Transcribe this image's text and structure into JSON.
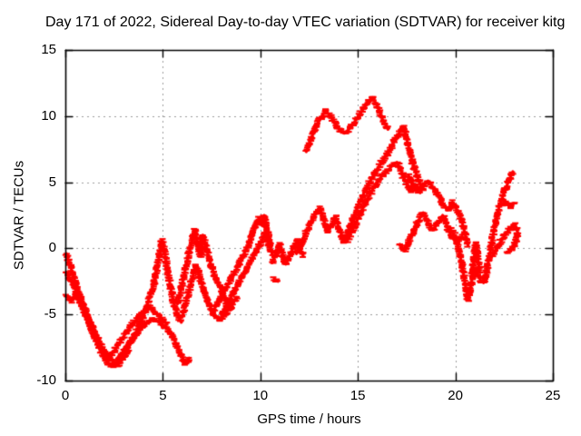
{
  "figure": {
    "title": "Day 171 of 2022, Sidereal Day-to-day VTEC variation (SDTVAR) for receiver kitg"
  },
  "chart_data": {
    "type": "scatter",
    "title": "Day 171 of 2022, Sidereal Day-to-day VTEC variation (SDTVAR) for receiver kitg",
    "xlabel": "GPS time / hours",
    "ylabel": "SDTVAR / TECUs",
    "xlim": [
      0,
      25
    ],
    "ylim": [
      -10,
      15
    ],
    "xticks": [
      0,
      5,
      10,
      15,
      20,
      25
    ],
    "yticks": [
      -10,
      -5,
      0,
      5,
      10,
      15
    ],
    "grid": true,
    "grid_style": "dotted-gray",
    "marker": "horizontal-dash",
    "color": "#ff0000",
    "axis_color": "#000000",
    "series": [
      {
        "name": "trace-01",
        "spread": 2.0,
        "points": [
          [
            0.05,
            -0.4
          ],
          [
            0.25,
            -1.3
          ],
          [
            0.5,
            -2.5
          ],
          [
            0.8,
            -3.8
          ],
          [
            1.1,
            -5.1
          ],
          [
            1.4,
            -6.3
          ],
          [
            1.7,
            -7.4
          ],
          [
            2.0,
            -8.3
          ],
          [
            2.25,
            -8.8
          ],
          [
            2.5,
            -8.9
          ],
          [
            2.75,
            -8.4
          ],
          [
            3.0,
            -7.8
          ],
          [
            3.3,
            -7.1
          ],
          [
            3.6,
            -6.5
          ],
          [
            3.9,
            -6.0
          ],
          [
            4.2,
            -5.6
          ],
          [
            4.5,
            -5.3
          ],
          [
            4.8,
            -5.6
          ],
          [
            5.1,
            -5.9
          ],
          [
            5.4,
            -6.3
          ],
          [
            5.7,
            -7.3
          ],
          [
            5.95,
            -8.1
          ],
          [
            6.15,
            -8.7
          ],
          [
            6.35,
            -8.3
          ]
        ]
      },
      {
        "name": "trace-02",
        "spread": 2.0,
        "points": [
          [
            0.05,
            -1.8
          ],
          [
            0.3,
            -2.5
          ],
          [
            0.6,
            -3.3
          ],
          [
            0.9,
            -4.3
          ],
          [
            1.2,
            -5.4
          ],
          [
            1.5,
            -6.4
          ],
          [
            1.8,
            -7.3
          ],
          [
            2.1,
            -8.0
          ],
          [
            2.4,
            -8.5
          ],
          [
            2.7,
            -8.8
          ],
          [
            3.0,
            -8.3
          ],
          [
            3.25,
            -7.7
          ]
        ]
      },
      {
        "name": "trace-03",
        "spread": 2.0,
        "points": [
          [
            0.05,
            -3.6
          ],
          [
            0.3,
            -4.0
          ],
          [
            0.55,
            -3.4
          ],
          [
            0.8,
            -4.1
          ],
          [
            1.05,
            -5.0
          ],
          [
            1.3,
            -5.9
          ],
          [
            1.6,
            -6.9
          ],
          [
            1.9,
            -7.7
          ],
          [
            2.2,
            -8.2
          ],
          [
            2.5,
            -7.8
          ],
          [
            2.8,
            -7.1
          ],
          [
            3.1,
            -6.4
          ],
          [
            3.4,
            -5.8
          ],
          [
            3.7,
            -5.3
          ],
          [
            4.0,
            -4.8
          ],
          [
            4.3,
            -4.4
          ],
          [
            4.6,
            -4.8
          ],
          [
            4.9,
            -5.3
          ],
          [
            5.2,
            -5.7
          ]
        ]
      },
      {
        "name": "trace-04",
        "points": [
          [
            2.7,
            -8.5
          ],
          [
            3.0,
            -7.9
          ],
          [
            3.3,
            -7.2
          ],
          [
            3.6,
            -6.4
          ],
          [
            3.9,
            -5.5
          ],
          [
            4.15,
            -4.5
          ],
          [
            4.35,
            -3.5
          ],
          [
            4.55,
            -2.6
          ],
          [
            4.7,
            -1.5
          ],
          [
            4.85,
            -0.3
          ],
          [
            4.95,
            0.6
          ],
          [
            5.1,
            -0.4
          ],
          [
            5.25,
            -1.7
          ],
          [
            5.4,
            -3.0
          ],
          [
            5.55,
            -4.1
          ],
          [
            5.75,
            -5.0
          ],
          [
            5.95,
            -5.6
          ]
        ]
      },
      {
        "name": "trace-05",
        "points": [
          [
            5.75,
            -4.2
          ],
          [
            5.95,
            -3.0
          ],
          [
            6.15,
            -1.6
          ],
          [
            6.35,
            -0.3
          ],
          [
            6.55,
            0.9
          ],
          [
            6.65,
            1.4
          ],
          [
            6.8,
            0.2
          ],
          [
            6.95,
            -0.6
          ],
          [
            7.05,
            1.0
          ],
          [
            7.2,
            0.2
          ],
          [
            7.35,
            -0.7
          ],
          [
            7.55,
            -1.6
          ],
          [
            7.75,
            -2.4
          ],
          [
            8.0,
            -3.2
          ],
          [
            8.25,
            -3.9
          ],
          [
            8.55,
            -4.5
          ]
        ]
      },
      {
        "name": "trace-06",
        "points": [
          [
            6.0,
            -5.2
          ],
          [
            6.2,
            -4.0
          ],
          [
            6.45,
            -2.6
          ],
          [
            6.7,
            -1.3
          ],
          [
            6.9,
            -2.2
          ],
          [
            7.1,
            -3.2
          ],
          [
            7.35,
            -4.2
          ],
          [
            7.6,
            -4.9
          ],
          [
            7.9,
            -5.4
          ],
          [
            8.2,
            -5.0
          ],
          [
            8.5,
            -4.3
          ],
          [
            8.8,
            -3.7
          ]
        ]
      },
      {
        "name": "trace-07",
        "points": [
          [
            7.6,
            -4.7
          ],
          [
            7.9,
            -3.9
          ],
          [
            8.2,
            -3.1
          ],
          [
            8.5,
            -2.3
          ],
          [
            8.8,
            -1.5
          ],
          [
            9.1,
            -0.6
          ],
          [
            9.4,
            0.3
          ],
          [
            9.6,
            1.1
          ],
          [
            9.8,
            2.0
          ],
          [
            9.95,
            2.3
          ],
          [
            10.1,
            1.7
          ],
          [
            10.2,
            2.5
          ],
          [
            10.35,
            1.4
          ],
          [
            10.5,
            0.4
          ]
        ]
      },
      {
        "name": "trace-08",
        "points": [
          [
            8.0,
            -5.0
          ],
          [
            8.3,
            -4.2
          ],
          [
            8.6,
            -3.4
          ],
          [
            8.9,
            -2.6
          ],
          [
            9.2,
            -1.8
          ],
          [
            9.5,
            -1.0
          ],
          [
            9.8,
            -0.2
          ],
          [
            10.05,
            0.5
          ],
          [
            10.25,
            1.1
          ],
          [
            10.45,
            0.3
          ],
          [
            10.6,
            -0.4
          ]
        ]
      },
      {
        "name": "trace-09",
        "points": [
          [
            10.6,
            -1.1
          ],
          [
            10.8,
            -0.4
          ],
          [
            11.0,
            0.3
          ],
          [
            11.15,
            -0.5
          ],
          [
            11.3,
            -1.2
          ],
          [
            11.5,
            -0.6
          ],
          [
            11.7,
            0.1
          ],
          [
            11.9,
            0.6
          ],
          [
            12.05,
            0.0
          ],
          [
            12.2,
            -0.6
          ]
        ]
      },
      {
        "name": "trace-10",
        "points": [
          [
            10.7,
            -2.3
          ],
          [
            10.9,
            -2.5
          ]
        ]
      },
      {
        "name": "trace-11",
        "points": [
          [
            11.85,
            -0.4
          ],
          [
            12.1,
            0.4
          ],
          [
            12.35,
            1.2
          ],
          [
            12.6,
            2.0
          ],
          [
            12.85,
            2.7
          ],
          [
            13.05,
            3.1
          ],
          [
            13.25,
            2.1
          ],
          [
            13.45,
            1.3
          ],
          [
            13.65,
            1.8
          ],
          [
            13.85,
            2.4
          ],
          [
            14.05,
            1.4
          ],
          [
            14.25,
            0.8
          ],
          [
            14.45,
            0.5
          ]
        ]
      },
      {
        "name": "trace-12",
        "spread": 2.0,
        "points": [
          [
            12.35,
            7.3
          ],
          [
            12.6,
            8.3
          ],
          [
            12.85,
            9.2
          ],
          [
            13.1,
            9.9
          ],
          [
            13.35,
            10.4
          ],
          [
            13.6,
            10.0
          ],
          [
            13.85,
            9.4
          ],
          [
            14.1,
            8.9
          ],
          [
            14.3,
            8.7
          ],
          [
            14.55,
            9.0
          ],
          [
            14.8,
            9.5
          ],
          [
            15.05,
            10.0
          ],
          [
            15.3,
            10.6
          ],
          [
            15.55,
            11.1
          ],
          [
            15.75,
            11.4
          ],
          [
            15.95,
            10.9
          ],
          [
            16.1,
            10.4
          ],
          [
            16.25,
            9.8
          ],
          [
            16.4,
            9.4
          ],
          [
            16.55,
            9.0
          ]
        ]
      },
      {
        "name": "trace-13",
        "spread": 2.4,
        "points": [
          [
            14.1,
            0.9
          ],
          [
            14.3,
            0.5
          ],
          [
            14.5,
            1.2
          ],
          [
            14.75,
            2.2
          ],
          [
            15.0,
            3.2
          ],
          [
            15.25,
            4.0
          ],
          [
            15.5,
            4.7
          ],
          [
            15.75,
            5.4
          ],
          [
            16.0,
            6.0
          ],
          [
            16.3,
            6.7
          ],
          [
            16.6,
            7.4
          ],
          [
            16.9,
            8.2
          ],
          [
            17.15,
            8.8
          ],
          [
            17.35,
            9.2
          ],
          [
            17.55,
            8.0
          ],
          [
            17.75,
            6.8
          ],
          [
            17.95,
            5.8
          ],
          [
            18.15,
            5.0
          ],
          [
            18.35,
            4.5
          ]
        ]
      },
      {
        "name": "trace-14",
        "spread": 3.0,
        "points": [
          [
            14.45,
            0.6
          ],
          [
            14.75,
            1.5
          ],
          [
            15.05,
            2.4
          ],
          [
            15.35,
            3.3
          ],
          [
            15.65,
            4.2
          ],
          [
            15.95,
            4.9
          ],
          [
            16.25,
            5.5
          ],
          [
            16.55,
            5.9
          ],
          [
            16.8,
            6.3
          ],
          [
            17.0,
            6.5
          ],
          [
            17.2,
            5.9
          ],
          [
            17.45,
            5.1
          ],
          [
            17.7,
            4.4
          ],
          [
            17.95,
            4.7
          ],
          [
            18.2,
            4.2
          ]
        ]
      },
      {
        "name": "trace-15",
        "spread": 2.2,
        "points": [
          [
            17.6,
            5.5
          ],
          [
            17.85,
            4.7
          ],
          [
            18.1,
            4.3
          ],
          [
            18.35,
            4.7
          ],
          [
            18.6,
            5.1
          ],
          [
            18.85,
            4.6
          ],
          [
            19.1,
            4.1
          ],
          [
            19.35,
            3.4
          ],
          [
            19.6,
            2.9
          ],
          [
            19.85,
            3.5
          ],
          [
            20.05,
            3.0
          ],
          [
            20.3,
            2.2
          ],
          [
            20.5,
            1.1
          ],
          [
            20.65,
            0.2
          ]
        ]
      },
      {
        "name": "trace-16",
        "spread": 2.0,
        "points": [
          [
            17.15,
            0.3
          ],
          [
            17.4,
            -0.2
          ],
          [
            17.6,
            0.5
          ],
          [
            17.85,
            1.3
          ],
          [
            18.1,
            2.1
          ],
          [
            18.35,
            2.7
          ],
          [
            18.6,
            1.9
          ],
          [
            18.85,
            1.4
          ],
          [
            19.1,
            1.9
          ],
          [
            19.35,
            2.5
          ],
          [
            19.6,
            1.6
          ],
          [
            19.8,
            0.9
          ],
          [
            20.0,
            0.8
          ],
          [
            20.2,
            -0.2
          ],
          [
            20.4,
            -1.8
          ],
          [
            20.55,
            -3.1
          ],
          [
            20.65,
            -3.9
          ],
          [
            20.8,
            -2.8
          ],
          [
            20.95,
            -1.5
          ],
          [
            21.1,
            -1.9
          ],
          [
            21.3,
            -2.4
          ],
          [
            21.45,
            -2.6
          ],
          [
            21.6,
            -1.9
          ]
        ]
      },
      {
        "name": "trace-17",
        "spread": 3.5,
        "points": [
          [
            19.75,
            1.4
          ],
          [
            19.95,
            1.0
          ],
          [
            20.15,
            0.6
          ],
          [
            20.35,
            0.9
          ]
        ]
      },
      {
        "name": "trace-18",
        "spread": 2.2,
        "points": [
          [
            21.45,
            -2.5
          ],
          [
            21.6,
            -1.7
          ],
          [
            21.75,
            -0.6
          ],
          [
            21.9,
            0.7
          ],
          [
            22.05,
            1.9
          ],
          [
            22.2,
            2.9
          ],
          [
            22.4,
            3.8
          ],
          [
            22.6,
            4.6
          ],
          [
            22.8,
            5.3
          ],
          [
            22.95,
            5.8
          ]
        ]
      },
      {
        "name": "trace-19",
        "points": [
          [
            22.4,
            3.3
          ],
          [
            22.6,
            3.5
          ],
          [
            22.8,
            3.1
          ],
          [
            23.0,
            3.4
          ]
        ]
      },
      {
        "name": "trace-20",
        "spread": 2.2,
        "points": [
          [
            21.95,
            -0.5
          ],
          [
            22.2,
            0.2
          ],
          [
            22.5,
            0.9
          ],
          [
            22.8,
            1.5
          ],
          [
            23.05,
            1.8
          ],
          [
            23.2,
            1.2
          ],
          [
            23.1,
            0.5
          ],
          [
            22.9,
            0.0
          ],
          [
            22.65,
            -0.3
          ]
        ]
      },
      {
        "name": "trace-21",
        "points": [
          [
            20.85,
            -2.0
          ],
          [
            20.95,
            -0.8
          ],
          [
            21.05,
            0.4
          ],
          [
            21.15,
            -0.7
          ],
          [
            21.25,
            -1.8
          ]
        ]
      }
    ]
  }
}
